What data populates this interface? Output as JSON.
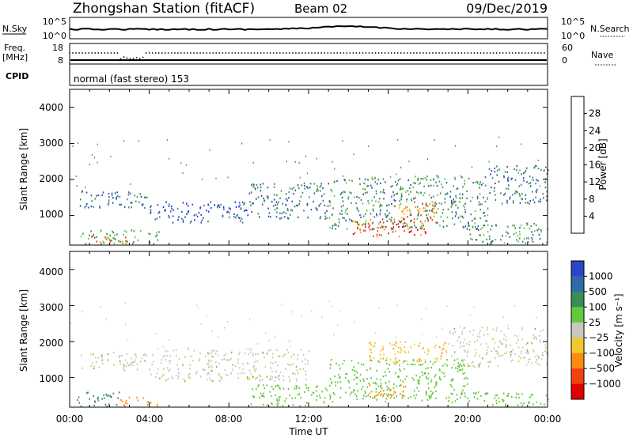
{
  "header": {
    "station": "Zhongshan Station (fitACF)",
    "beam": "Beam 02",
    "date": "09/Dec/2019"
  },
  "noise_panel": {
    "left_label": "N.Sky",
    "left_ticks": [
      "10^5",
      "10^0"
    ],
    "right_label": "N.Search",
    "right_ticks": [
      "10^5",
      "10^0"
    ]
  },
  "freq_panel": {
    "left_label_1": "Freq.",
    "left_label_2": "[MHz]",
    "left_ticks": [
      "18",
      "8"
    ],
    "right_label": "Nave",
    "right_ticks": [
      "60",
      "0"
    ]
  },
  "cpid": {
    "label": "CPID",
    "text": "normal (fast stereo) 153"
  },
  "axes": {
    "ylabel": "Slant Range [km]",
    "y_ticks": [
      "1000",
      "2000",
      "3000",
      "4000"
    ],
    "x_ticks": [
      "00:00",
      "04:00",
      "08:00",
      "12:00",
      "16:00",
      "20:00",
      "00:00"
    ],
    "xlabel": "Time UT"
  },
  "power_scale": {
    "label": "Power [dB]",
    "ticks": [
      "4",
      "8",
      "12",
      "16",
      "20",
      "24",
      "28"
    ],
    "colors": [
      "#1a2cff",
      "#2d52b0",
      "#3c8a5a",
      "#5cc940",
      "#f0c418",
      "#ff8a00",
      "#f23a10",
      "#e60000"
    ]
  },
  "velocity_scale": {
    "label": "Velocity [m s⁻¹]",
    "ticks": [
      "1000",
      "500",
      "100",
      "25",
      "−25",
      "−100",
      "−500",
      "−1000"
    ],
    "colors": [
      "#2a45c8",
      "#2d6aa8",
      "#3a8c5c",
      "#62c93c",
      "#c8c8c0",
      "#f0c830",
      "#ff8a10",
      "#f24010",
      "#e00000"
    ]
  },
  "chart_data": {
    "type": "heatmap",
    "title": "Zhongshan Station (fitACF)",
    "xlabel": "Time UT",
    "ylabel": "Slant Range [km]",
    "x_range": [
      "00:00",
      "24:00"
    ],
    "ylim": [
      180,
      4500
    ],
    "panels": [
      {
        "name": "Power",
        "unit": "dB",
        "regions": [
          {
            "t0": 0.5,
            "t1": 4.0,
            "r0": 1200,
            "r1": 1700,
            "level": 8
          },
          {
            "t0": 0.5,
            "t1": 4.5,
            "r0": 200,
            "r1": 600,
            "level": 12
          },
          {
            "t0": 1.0,
            "t1": 3.5,
            "r0": 250,
            "r1": 400,
            "level": 24
          },
          {
            "t0": 4.0,
            "t1": 9.0,
            "r0": 800,
            "r1": 1400,
            "level": 6
          },
          {
            "t0": 9.0,
            "t1": 13.0,
            "r0": 900,
            "r1": 1900,
            "level": 8
          },
          {
            "t0": 13.0,
            "t1": 21.0,
            "r0": 600,
            "r1": 2100,
            "level": 10
          },
          {
            "t0": 14.0,
            "t1": 18.0,
            "r0": 400,
            "r1": 900,
            "level": 26
          },
          {
            "t0": 16.5,
            "t1": 18.5,
            "r0": 800,
            "r1": 1400,
            "level": 22
          },
          {
            "t0": 21.0,
            "t1": 24.0,
            "r0": 1300,
            "r1": 2400,
            "level": 8
          },
          {
            "t0": 20.0,
            "t1": 24.0,
            "r0": 200,
            "r1": 800,
            "level": 10
          }
        ]
      },
      {
        "name": "Velocity",
        "unit": "m/s",
        "regions": [
          {
            "t0": 0.5,
            "t1": 4.0,
            "r0": 1200,
            "r1": 1700,
            "level": 0
          },
          {
            "t0": 0.3,
            "t1": 2.5,
            "r0": 200,
            "r1": 600,
            "level": 150
          },
          {
            "t0": 2.5,
            "t1": 4.5,
            "r0": 200,
            "r1": 450,
            "level": -300
          },
          {
            "t0": 4.0,
            "t1": 12.0,
            "r0": 900,
            "r1": 1800,
            "level": 0
          },
          {
            "t0": 9.0,
            "t1": 13.0,
            "r0": 200,
            "r1": 800,
            "level": 60
          },
          {
            "t0": 13.0,
            "t1": 20.0,
            "r0": 300,
            "r1": 1500,
            "level": 60
          },
          {
            "t0": 15.0,
            "t1": 17.0,
            "r0": 400,
            "r1": 800,
            "level": -300
          },
          {
            "t0": 15.0,
            "t1": 19.0,
            "r0": 1400,
            "r1": 2000,
            "level": -80
          },
          {
            "t0": 19.0,
            "t1": 24.0,
            "r0": 1300,
            "r1": 2400,
            "level": 0
          },
          {
            "t0": 20.0,
            "t1": 24.0,
            "r0": 200,
            "r1": 600,
            "level": 60
          }
        ]
      }
    ]
  }
}
